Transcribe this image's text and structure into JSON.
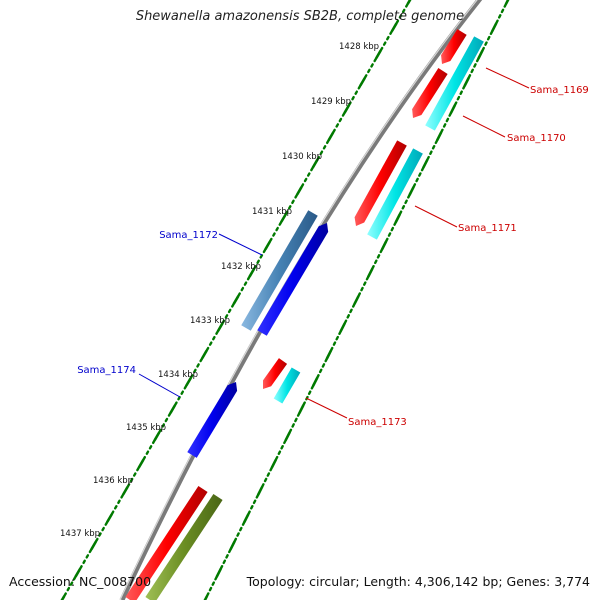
{
  "title": "Shewanella amazonensis SB2B, complete genome",
  "footer": {
    "accession": "Accession: NC_008700",
    "summary": "Topology: circular; Length: 4,306,142 bp; Genes: 3,774"
  },
  "ticks": [
    {
      "label": "1428 kbp"
    },
    {
      "label": "1429 kbp"
    },
    {
      "label": "1430 kbp"
    },
    {
      "label": "1431 kbp"
    },
    {
      "label": "1432 kbp"
    },
    {
      "label": "1433 kbp"
    },
    {
      "label": "1434 kbp"
    },
    {
      "label": "1435 kbp"
    },
    {
      "label": "1436 kbp"
    },
    {
      "label": "1437 kbp"
    }
  ],
  "genes": [
    {
      "label": "Sama_1169",
      "strand": "reverse",
      "color": "#cc0000"
    },
    {
      "label": "Sama_1170",
      "strand": "reverse",
      "color": "#cc0000"
    },
    {
      "label": "Sama_1171",
      "strand": "reverse",
      "color": "#cc0000"
    },
    {
      "label": "Sama_1172",
      "strand": "forward",
      "color": "#0000cc"
    },
    {
      "label": "Sama_1173",
      "strand": "reverse",
      "color": "#cc0000"
    },
    {
      "label": "Sama_1174",
      "strand": "forward",
      "color": "#0000cc"
    }
  ],
  "colors": {
    "cds_reverse": "#ff0000",
    "cds_forward": "#0000ee",
    "blast_cyan": "#00e5e5",
    "blast_steel": "#4682b4",
    "blast_olive": "#6b8e23",
    "backbone": "#777777",
    "tick": "#007a00"
  }
}
